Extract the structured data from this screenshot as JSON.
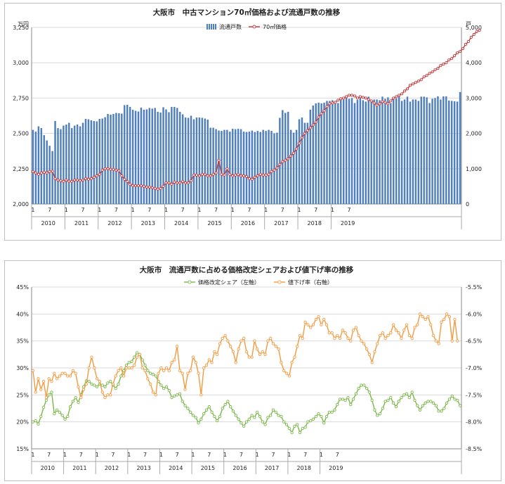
{
  "chart_data": [
    {
      "type": "bar+line",
      "title": "大阪市　中古マンション70㎡価格および流通戸数の推移",
      "y_left_unit": "万円",
      "y_right_unit": "戸",
      "y_left_lim": [
        2000,
        3250
      ],
      "y_left_ticks": [
        "2,000",
        "2,250",
        "2,500",
        "2,750",
        "3,000",
        "3,250"
      ],
      "y_right_lim": [
        0,
        5000
      ],
      "y_right_ticks": [
        "0",
        "1,000",
        "2,000",
        "3,000",
        "4,000",
        "5,000"
      ],
      "months": [
        "1",
        "7"
      ],
      "years": [
        "2010",
        "2011",
        "2012",
        "2013",
        "2014",
        "2015",
        "2016",
        "2017",
        "2018",
        "2019"
      ],
      "series": [
        {
          "name": "流通戸数",
          "axis": "right",
          "color": "#4f7fbf",
          "type": "bar",
          "values": [
            2100,
            2050,
            2200,
            2150,
            1950,
            1800,
            1650,
            1500,
            2350,
            2150,
            2120,
            2220,
            2250,
            2300,
            2150,
            2220,
            2250,
            2200,
            2300,
            2410,
            2400,
            2370,
            2350,
            2340,
            2410,
            2420,
            2460,
            2550,
            2530,
            2550,
            2580,
            2570,
            2560,
            2800,
            2810,
            2750,
            2670,
            2640,
            2620,
            2730,
            2670,
            2680,
            2720,
            2700,
            2720,
            2610,
            2590,
            2740,
            2680,
            2600,
            2750,
            2750,
            2720,
            2610,
            2540,
            2450,
            2440,
            2500,
            2400,
            2450,
            2450,
            2440,
            2420,
            2390,
            2160,
            2160,
            2120,
            2080,
            2070,
            2100,
            2100,
            2050,
            2130,
            2120,
            2130,
            2120,
            2050,
            2040,
            2050,
            2080,
            2040,
            2070,
            2040,
            2100,
            2070,
            2100,
            2070,
            2000,
            2020,
            2440,
            2660,
            2580,
            2610,
            2100,
            2020,
            2100,
            2400,
            2450,
            2300,
            2300,
            2670,
            2790,
            2850,
            2870,
            2850,
            2870,
            2920,
            2920,
            2940,
            2920,
            2860,
            3020,
            2960,
            3020,
            2980,
            3000,
            2860,
            2950,
            3060,
            2940,
            2900,
            3040,
            2920,
            2960,
            2960,
            2940,
            3040,
            2980,
            3020,
            2860,
            3000,
            2990,
            3050,
            2920,
            2960,
            3040,
            2900,
            2960,
            2960,
            2920,
            3040,
            3040,
            3020,
            2860,
            2980,
            3000,
            3050,
            2960,
            3050,
            3050,
            2930,
            2920,
            2910,
            2900,
            3170
          ]
        },
        {
          "name": "70㎡価格",
          "axis": "left",
          "color": "#c0393b",
          "type": "line",
          "values": [
            2230,
            2220,
            2210,
            2220,
            2225,
            2220,
            2230,
            2232,
            2180,
            2170,
            2165,
            2160,
            2170,
            2162,
            2160,
            2170,
            2170,
            2165,
            2170,
            2180,
            2175,
            2180,
            2190,
            2200,
            2210,
            2240,
            2250,
            2250,
            2245,
            2245,
            2240,
            2235,
            2200,
            2175,
            2160,
            2140,
            2130,
            2130,
            2130,
            2130,
            2125,
            2120,
            2120,
            2115,
            2110,
            2105,
            2110,
            2125,
            2150,
            2150,
            2140,
            2155,
            2150,
            2150,
            2160,
            2150,
            2150,
            2165,
            2205,
            2205,
            2200,
            2210,
            2210,
            2200,
            2200,
            2210,
            2220,
            2310,
            2210,
            2205,
            2250,
            2210,
            2200,
            2205,
            2210,
            2200,
            2200,
            2195,
            2180,
            2175,
            2190,
            2200,
            2210,
            2205,
            2205,
            2210,
            2230,
            2240,
            2255,
            2280,
            2300,
            2310,
            2320,
            2340,
            2360,
            2390,
            2430,
            2470,
            2500,
            2520,
            2540,
            2560,
            2580,
            2615,
            2640,
            2660,
            2690,
            2710,
            2715,
            2720,
            2735,
            2745,
            2750,
            2760,
            2770,
            2770,
            2765,
            2750,
            2760,
            2755,
            2750,
            2740,
            2730,
            2715,
            2700,
            2710,
            2725,
            2720,
            2710,
            2730,
            2750,
            2760,
            2770,
            2780,
            2800,
            2815,
            2840,
            2850,
            2860,
            2870,
            2880,
            2900,
            2910,
            2925,
            2935,
            2950,
            2960,
            2980,
            2990,
            3000,
            3020,
            3030,
            3050,
            3070,
            3080,
            3100,
            3130,
            3150,
            3180,
            3200,
            3220,
            3230
          ]
        }
      ]
    },
    {
      "type": "line",
      "title": "大阪市　流通戸数に占める価格改定シェアおよび値下げ率の推移",
      "y_left_lim": [
        0.15,
        0.45
      ],
      "y_left_ticks": [
        "15%",
        "20%",
        "25%",
        "30%",
        "35%",
        "40%",
        "45%"
      ],
      "y_right_lim": [
        -8.5,
        -5.5
      ],
      "y_right_ticks": [
        "-5.5%",
        "-6.0%",
        "-6.5%",
        "-7.0%",
        "-7.5%",
        "-8.0%",
        "-8.5%"
      ],
      "months": [
        "1",
        "7"
      ],
      "years": [
        "2010",
        "2011",
        "2012",
        "2013",
        "2014",
        "2015",
        "2016",
        "2017",
        "2018",
        "2019"
      ],
      "series": [
        {
          "name": "価格改定シェア（左軸）",
          "axis": "left",
          "color": "#7ab648",
          "values": [
            0.2,
            0.202,
            0.196,
            0.21,
            0.227,
            0.24,
            0.25,
            0.255,
            0.215,
            0.222,
            0.218,
            0.212,
            0.205,
            0.21,
            0.228,
            0.238,
            0.245,
            0.236,
            0.25,
            0.265,
            0.276,
            0.275,
            0.27,
            0.268,
            0.265,
            0.27,
            0.268,
            0.265,
            0.272,
            0.275,
            0.268,
            0.262,
            0.27,
            0.285,
            0.295,
            0.305,
            0.31,
            0.312,
            0.32,
            0.328,
            0.325,
            0.315,
            0.305,
            0.295,
            0.29,
            0.288,
            0.285,
            0.275,
            0.268,
            0.262,
            0.265,
            0.258,
            0.245,
            0.248,
            0.25,
            0.252,
            0.238,
            0.23,
            0.225,
            0.218,
            0.212,
            0.208,
            0.198,
            0.205,
            0.215,
            0.222,
            0.228,
            0.218,
            0.21,
            0.202,
            0.21,
            0.225,
            0.232,
            0.238,
            0.228,
            0.22,
            0.212,
            0.205,
            0.198,
            0.192,
            0.2,
            0.205,
            0.212,
            0.208,
            0.218,
            0.21,
            0.2,
            0.195,
            0.208,
            0.212,
            0.222,
            0.218,
            0.212,
            0.21,
            0.2,
            0.195,
            0.188,
            0.18,
            0.192,
            0.195,
            0.18,
            0.188,
            0.19,
            0.2,
            0.202,
            0.205,
            0.21,
            0.215,
            0.21,
            0.198,
            0.21,
            0.218,
            0.218,
            0.222,
            0.232,
            0.242,
            0.242,
            0.24,
            0.245,
            0.232,
            0.242,
            0.252,
            0.262,
            0.268,
            0.268,
            0.262,
            0.255,
            0.24,
            0.222,
            0.212,
            0.215,
            0.225,
            0.238,
            0.24,
            0.245,
            0.235,
            0.228,
            0.238,
            0.245,
            0.25,
            0.252,
            0.245,
            0.255,
            0.24,
            0.23,
            0.222,
            0.23,
            0.235,
            0.238,
            0.238,
            0.235,
            0.23,
            0.22,
            0.22,
            0.225,
            0.235,
            0.242,
            0.248,
            0.242,
            0.24,
            0.23
          ]
        },
        {
          "name": "値下げ率（右軸）",
          "axis": "right",
          "color": "#f29a3f",
          "values": [
            -7.05,
            -7.45,
            -7.2,
            -7.4,
            -7.25,
            -7.55,
            -7.2,
            -7.25,
            -7.1,
            -7.2,
            -7.15,
            -7.1,
            -7.1,
            -7.15,
            -7.15,
            -7.05,
            -7.1,
            -7.35,
            -7.55,
            -7.4,
            -7.3,
            -7.0,
            -6.8,
            -7.0,
            -7.2,
            -7.25,
            -7.45,
            -7.55,
            -7.5,
            -7.5,
            -7.3,
            -7.15,
            -7.05,
            -7.0,
            -7.15,
            -7.0,
            -7.0,
            -7.0,
            -6.95,
            -6.8,
            -6.75,
            -7.0,
            -7.05,
            -7.2,
            -7.3,
            -7.45,
            -7.5,
            -7.1,
            -7.0,
            -7.05,
            -7.0,
            -7.05,
            -6.9,
            -6.85,
            -6.6,
            -7.05,
            -7.1,
            -7.4,
            -7.1,
            -7.05,
            -6.8,
            -6.9,
            -7.1,
            -7.5,
            -7.0,
            -6.95,
            -6.85,
            -6.9,
            -6.7,
            -6.75,
            -6.55,
            -6.45,
            -6.4,
            -6.5,
            -6.6,
            -6.7,
            -6.9,
            -6.65,
            -6.5,
            -6.45,
            -6.7,
            -6.8,
            -6.8,
            -6.5,
            -6.65,
            -6.75,
            -6.7,
            -6.75,
            -6.5,
            -6.45,
            -6.55,
            -6.6,
            -6.65,
            -6.9,
            -7.05,
            -7.1,
            -7.15,
            -6.9,
            -6.8,
            -6.6,
            -6.4,
            -6.45,
            -6.15,
            -6.2,
            -6.25,
            -6.2,
            -6.1,
            -6.05,
            -6.2,
            -6.1,
            -6.2,
            -6.35,
            -6.35,
            -6.45,
            -6.4,
            -6.45,
            -6.3,
            -6.35,
            -6.45,
            -6.5,
            -6.3,
            -6.25,
            -6.4,
            -6.5,
            -6.55,
            -6.65,
            -6.75,
            -6.9,
            -6.7,
            -6.55,
            -6.4,
            -6.35,
            -6.45,
            -6.4,
            -6.35,
            -6.2,
            -6.3,
            -6.35,
            -6.45,
            -6.3,
            -6.2,
            -6.4,
            -6.45,
            -6.25,
            -6.2,
            -6.0,
            -6.05,
            -6.1,
            -6.05,
            -6.2,
            -6.4,
            -6.5,
            -6.55,
            -6.15,
            -6.1,
            -6.0,
            -6.05,
            -6.5,
            -6.1,
            -6.5
          ]
        }
      ]
    }
  ]
}
